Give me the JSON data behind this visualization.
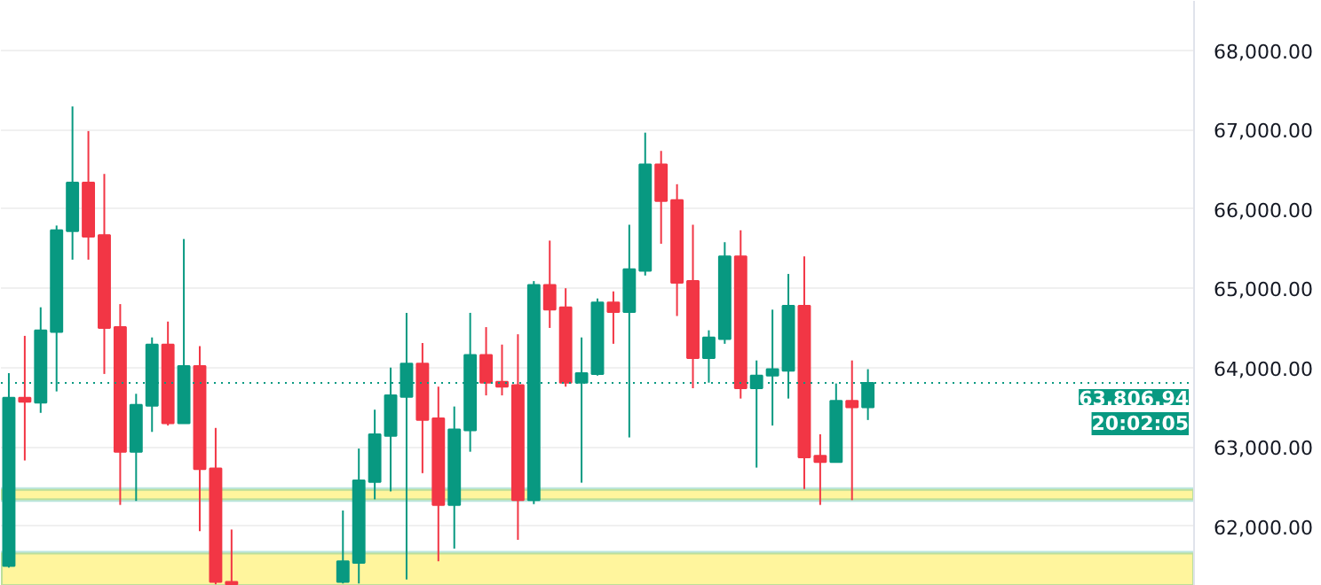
{
  "chart_data": {
    "type": "candlestick",
    "categories": [
      null,
      null,
      null,
      null,
      null,
      null,
      null,
      null,
      null,
      null,
      null,
      null,
      null,
      null,
      null,
      null,
      null,
      null,
      null,
      null,
      null,
      null,
      null,
      null,
      null,
      null,
      null,
      null,
      null,
      null,
      null,
      null,
      null,
      null,
      null,
      null,
      null,
      null,
      null,
      null,
      null,
      null,
      null,
      null,
      null,
      null,
      null,
      null,
      null,
      null,
      null,
      null,
      null,
      null,
      null,
      null,
      null,
      null,
      null,
      null,
      null,
      null,
      null,
      null,
      null,
      null,
      null,
      null,
      null,
      null,
      null,
      null,
      null,
      null,
      null
    ],
    "ohlc": [
      [
        61500,
        63930,
        61480,
        63620
      ],
      [
        63620,
        64400,
        62830,
        63570
      ],
      [
        63560,
        64760,
        63430,
        64470
      ],
      [
        64450,
        65790,
        63700,
        65730
      ],
      [
        65720,
        67290,
        65360,
        66330
      ],
      [
        66330,
        66980,
        65360,
        65650
      ],
      [
        65670,
        66440,
        63920,
        64500
      ],
      [
        64510,
        64800,
        62270,
        62940
      ],
      [
        62940,
        63670,
        62320,
        63530
      ],
      [
        63520,
        64380,
        63190,
        64290
      ],
      [
        64290,
        64580,
        63270,
        63300
      ],
      [
        63300,
        65620,
        63300,
        64020
      ],
      [
        64020,
        64270,
        61940,
        62720
      ],
      [
        62730,
        63240,
        61270,
        61300
      ],
      [
        61300,
        61960,
        61260,
        61270
      ],
      null,
      null,
      null,
      null,
      null,
      null,
      [
        61300,
        62200,
        61280,
        61560
      ],
      [
        61540,
        62980,
        61280,
        62580
      ],
      [
        62560,
        63470,
        62340,
        63160
      ],
      [
        63140,
        64000,
        62440,
        63650
      ],
      [
        63630,
        64690,
        61330,
        64050
      ],
      [
        64050,
        64310,
        62670,
        63340
      ],
      [
        63360,
        63760,
        61560,
        62270
      ],
      [
        62270,
        63510,
        61720,
        63220
      ],
      [
        63210,
        64690,
        62940,
        64160
      ],
      [
        64160,
        64510,
        63650,
        63810
      ],
      [
        63820,
        64290,
        63650,
        63760
      ],
      [
        63780,
        64420,
        61830,
        62330
      ],
      [
        62330,
        65090,
        62280,
        65040
      ],
      [
        65040,
        65600,
        64500,
        64730
      ],
      [
        64760,
        65000,
        63760,
        63810
      ],
      [
        63810,
        64380,
        62550,
        63930
      ],
      [
        63920,
        64870,
        63900,
        64820
      ],
      [
        64820,
        64960,
        64300,
        64700
      ],
      [
        64700,
        65800,
        63120,
        65240
      ],
      [
        65220,
        66960,
        65160,
        66560
      ],
      [
        66560,
        66730,
        65560,
        66100
      ],
      [
        66110,
        66310,
        64650,
        65070
      ],
      [
        65090,
        65800,
        63740,
        64120
      ],
      [
        64120,
        64470,
        63810,
        64380
      ],
      [
        64360,
        65580,
        64300,
        65400
      ],
      [
        65400,
        65730,
        63610,
        63740
      ],
      [
        63740,
        64090,
        62740,
        63900
      ],
      [
        63900,
        64730,
        63270,
        63980
      ],
      [
        63960,
        65180,
        63610,
        64780
      ],
      [
        64780,
        65400,
        62470,
        62870
      ],
      [
        62890,
        63160,
        62270,
        62810
      ],
      [
        62810,
        63800,
        62810,
        63580
      ],
      [
        63580,
        64090,
        62330,
        63500
      ],
      [
        63500,
        63980,
        63340,
        63806.94
      ],
      null,
      null,
      null,
      null,
      null,
      null,
      null,
      null,
      null,
      null,
      null,
      null,
      null,
      null,
      null,
      null,
      null,
      null,
      null,
      null
    ],
    "colors": [
      "#089981",
      "#f23645",
      "#089981",
      "#089981",
      "#089981",
      "#f23645",
      "#f23645",
      "#f23645",
      "#089981",
      "#089981",
      "#f23645",
      "#089981",
      "#f23645",
      "#f23645",
      "#f23645",
      null,
      null,
      null,
      null,
      null,
      null,
      "#089981",
      "#089981",
      "#089981",
      "#089981",
      "#089981",
      "#f23645",
      "#f23645",
      "#089981",
      "#089981",
      "#f23645",
      "#f23645",
      "#f23645",
      "#089981",
      "#f23645",
      "#f23645",
      "#089981",
      "#089981",
      "#f23645",
      "#089981",
      "#089981",
      "#f23645",
      "#f23645",
      "#f23645",
      "#089981",
      "#089981",
      "#f23645",
      "#089981",
      "#089981",
      "#089981",
      "#f23645",
      "#f23645",
      "#089981",
      "#f23645",
      "#089981",
      null,
      null,
      null,
      null,
      null,
      null,
      null,
      null,
      null,
      null,
      null,
      null,
      null,
      null,
      null,
      null,
      null,
      null,
      null,
      null
    ],
    "ylim": [
      61250,
      68620
    ],
    "yticks": [
      {
        "value": 62000,
        "label": "62,000.00"
      },
      {
        "value": 63000,
        "label": "63,000.00"
      },
      {
        "value": 64000,
        "label": "64,000.00"
      },
      {
        "value": 65000,
        "label": "65,000.00"
      },
      {
        "value": 66000,
        "label": "66,000.00"
      },
      {
        "value": 67000,
        "label": "67,000.00"
      },
      {
        "value": 68000,
        "label": "68,000.00"
      }
    ],
    "grid": "y",
    "tick_labels": "y",
    "ref_lines": [
      {
        "axis": "y",
        "value": 63806.94,
        "label": "63,806.94",
        "color": "#089981",
        "line_style": "dotted"
      }
    ],
    "bands": [
      {
        "axis": "y",
        "from": 61250,
        "to": 61670,
        "color": "#fff59d"
      },
      {
        "axis": "y",
        "from": 62330,
        "to": 62470,
        "color": "#fff59d"
      }
    ],
    "annotations": [
      "20:02:05"
    ]
  }
}
